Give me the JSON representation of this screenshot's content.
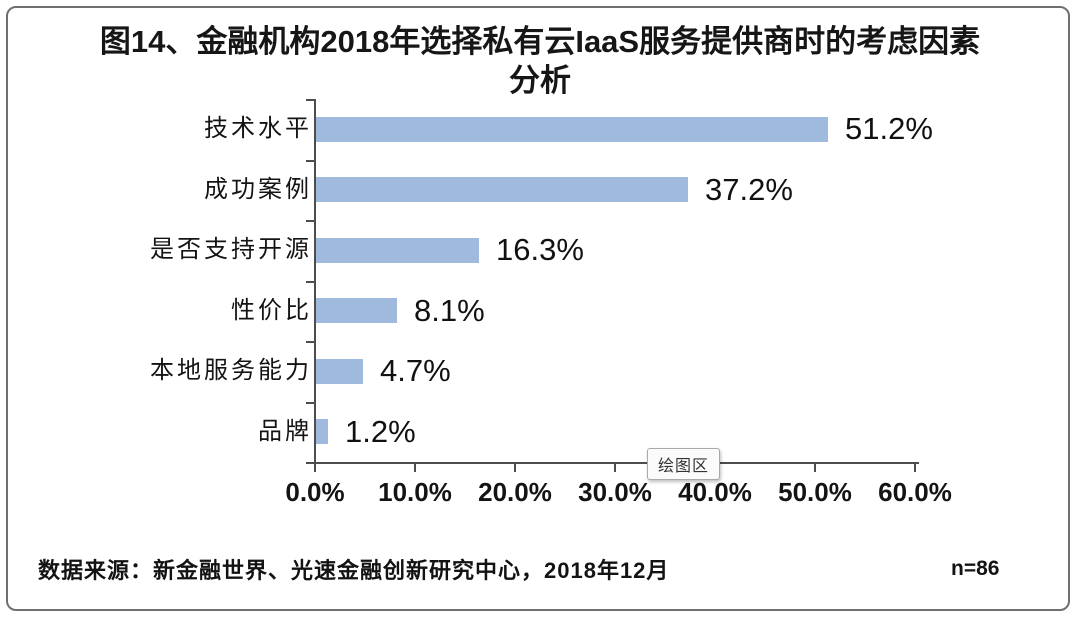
{
  "page": {
    "title_line1": "图14、金融机构2018年选择私有云IaaS服务提供商时的考虑因素",
    "title_line2": "分析",
    "plot_area_tooltip": "绘图区",
    "source_note": "数据来源：新金融世界、光速金融创新研究中心，2018年12月",
    "sample_size": "n=86"
  },
  "chart_data": {
    "type": "bar",
    "orientation": "horizontal",
    "title": "图14、金融机构2018年选择私有云IaaS服务提供商时的考虑因素分析",
    "categories": [
      "技术水平",
      "成功案例",
      "是否支持开源",
      "性价比",
      "本地服务能力",
      "品牌"
    ],
    "values": [
      51.2,
      37.2,
      16.3,
      8.1,
      4.7,
      1.2
    ],
    "value_labels": [
      "51.2%",
      "37.2%",
      "16.3%",
      "8.1%",
      "4.7%",
      "1.2%"
    ],
    "x_tick_labels": [
      "0.0%",
      "10.0%",
      "20.0%",
      "30.0%",
      "40.0%",
      "50.0%",
      "60.0%"
    ],
    "xlim": [
      0,
      60
    ],
    "xlabel": "",
    "ylabel": "",
    "grid": false,
    "legend": "none",
    "bar_color": "#9FBADD",
    "axis_color": "#4d4d4d",
    "label_color": "#111111"
  }
}
